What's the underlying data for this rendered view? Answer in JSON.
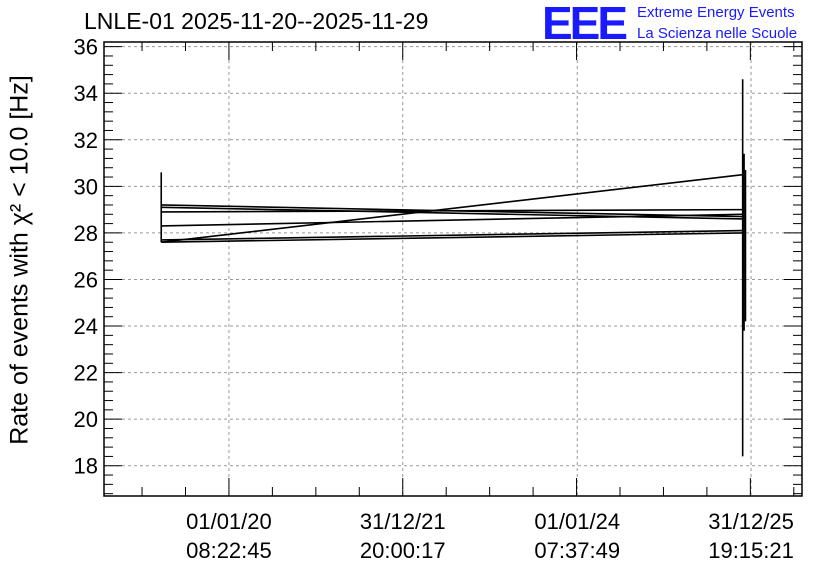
{
  "header": {
    "title": "LNLE-01 2025-11-20--2025-11-29",
    "logo_text": "EEE",
    "logo_line1": "Extreme Energy Events",
    "logo_line2": "La Scienza nelle Scuole",
    "logo_color": "#1a1aff"
  },
  "chart_data": {
    "type": "line",
    "title": "LNLE-01 2025-11-20--2025-11-29",
    "ylabel": "Rate of events with χ² < 10.0 [Hz]",
    "ylim": [
      16.7,
      36.2
    ],
    "xlim": [
      0,
      1000
    ],
    "grid": true,
    "yticks": [
      18,
      20,
      22,
      24,
      26,
      28,
      30,
      32,
      34,
      36
    ],
    "xticks": [
      {
        "x": 179,
        "date": "01/01/20",
        "time": "08:22:45"
      },
      {
        "x": 428,
        "date": "31/12/21",
        "time": "20:00:17"
      },
      {
        "x": 678,
        "date": "01/01/24",
        "time": "07:37:49"
      },
      {
        "x": 927,
        "date": "31/12/25",
        "time": "19:15:21"
      }
    ],
    "series": [
      {
        "x": [
          82,
          915
        ],
        "y": [
          29.2,
          28.7
        ]
      },
      {
        "x": [
          82,
          915
        ],
        "y": [
          29.1,
          28.6
        ]
      },
      {
        "x": [
          82,
          915
        ],
        "y": [
          28.9,
          29.0
        ]
      },
      {
        "x": [
          82,
          915
        ],
        "y": [
          28.3,
          28.8
        ]
      },
      {
        "x": [
          82,
          915
        ],
        "y": [
          27.7,
          28.1
        ]
      },
      {
        "x": [
          82,
          915
        ],
        "y": [
          27.6,
          28.0
        ]
      },
      {
        "x": [
          82,
          915
        ],
        "y": [
          27.6,
          30.5
        ]
      }
    ],
    "error_bars": [
      {
        "x": 82,
        "y_low": 27.6,
        "y_high": 30.6
      },
      {
        "x": 915,
        "y_low": 18.4,
        "y_high": 34.6
      },
      {
        "x": 917,
        "y_low": 23.8,
        "y_high": 31.4
      },
      {
        "x": 919,
        "y_low": 24.2,
        "y_high": 30.7
      }
    ]
  }
}
